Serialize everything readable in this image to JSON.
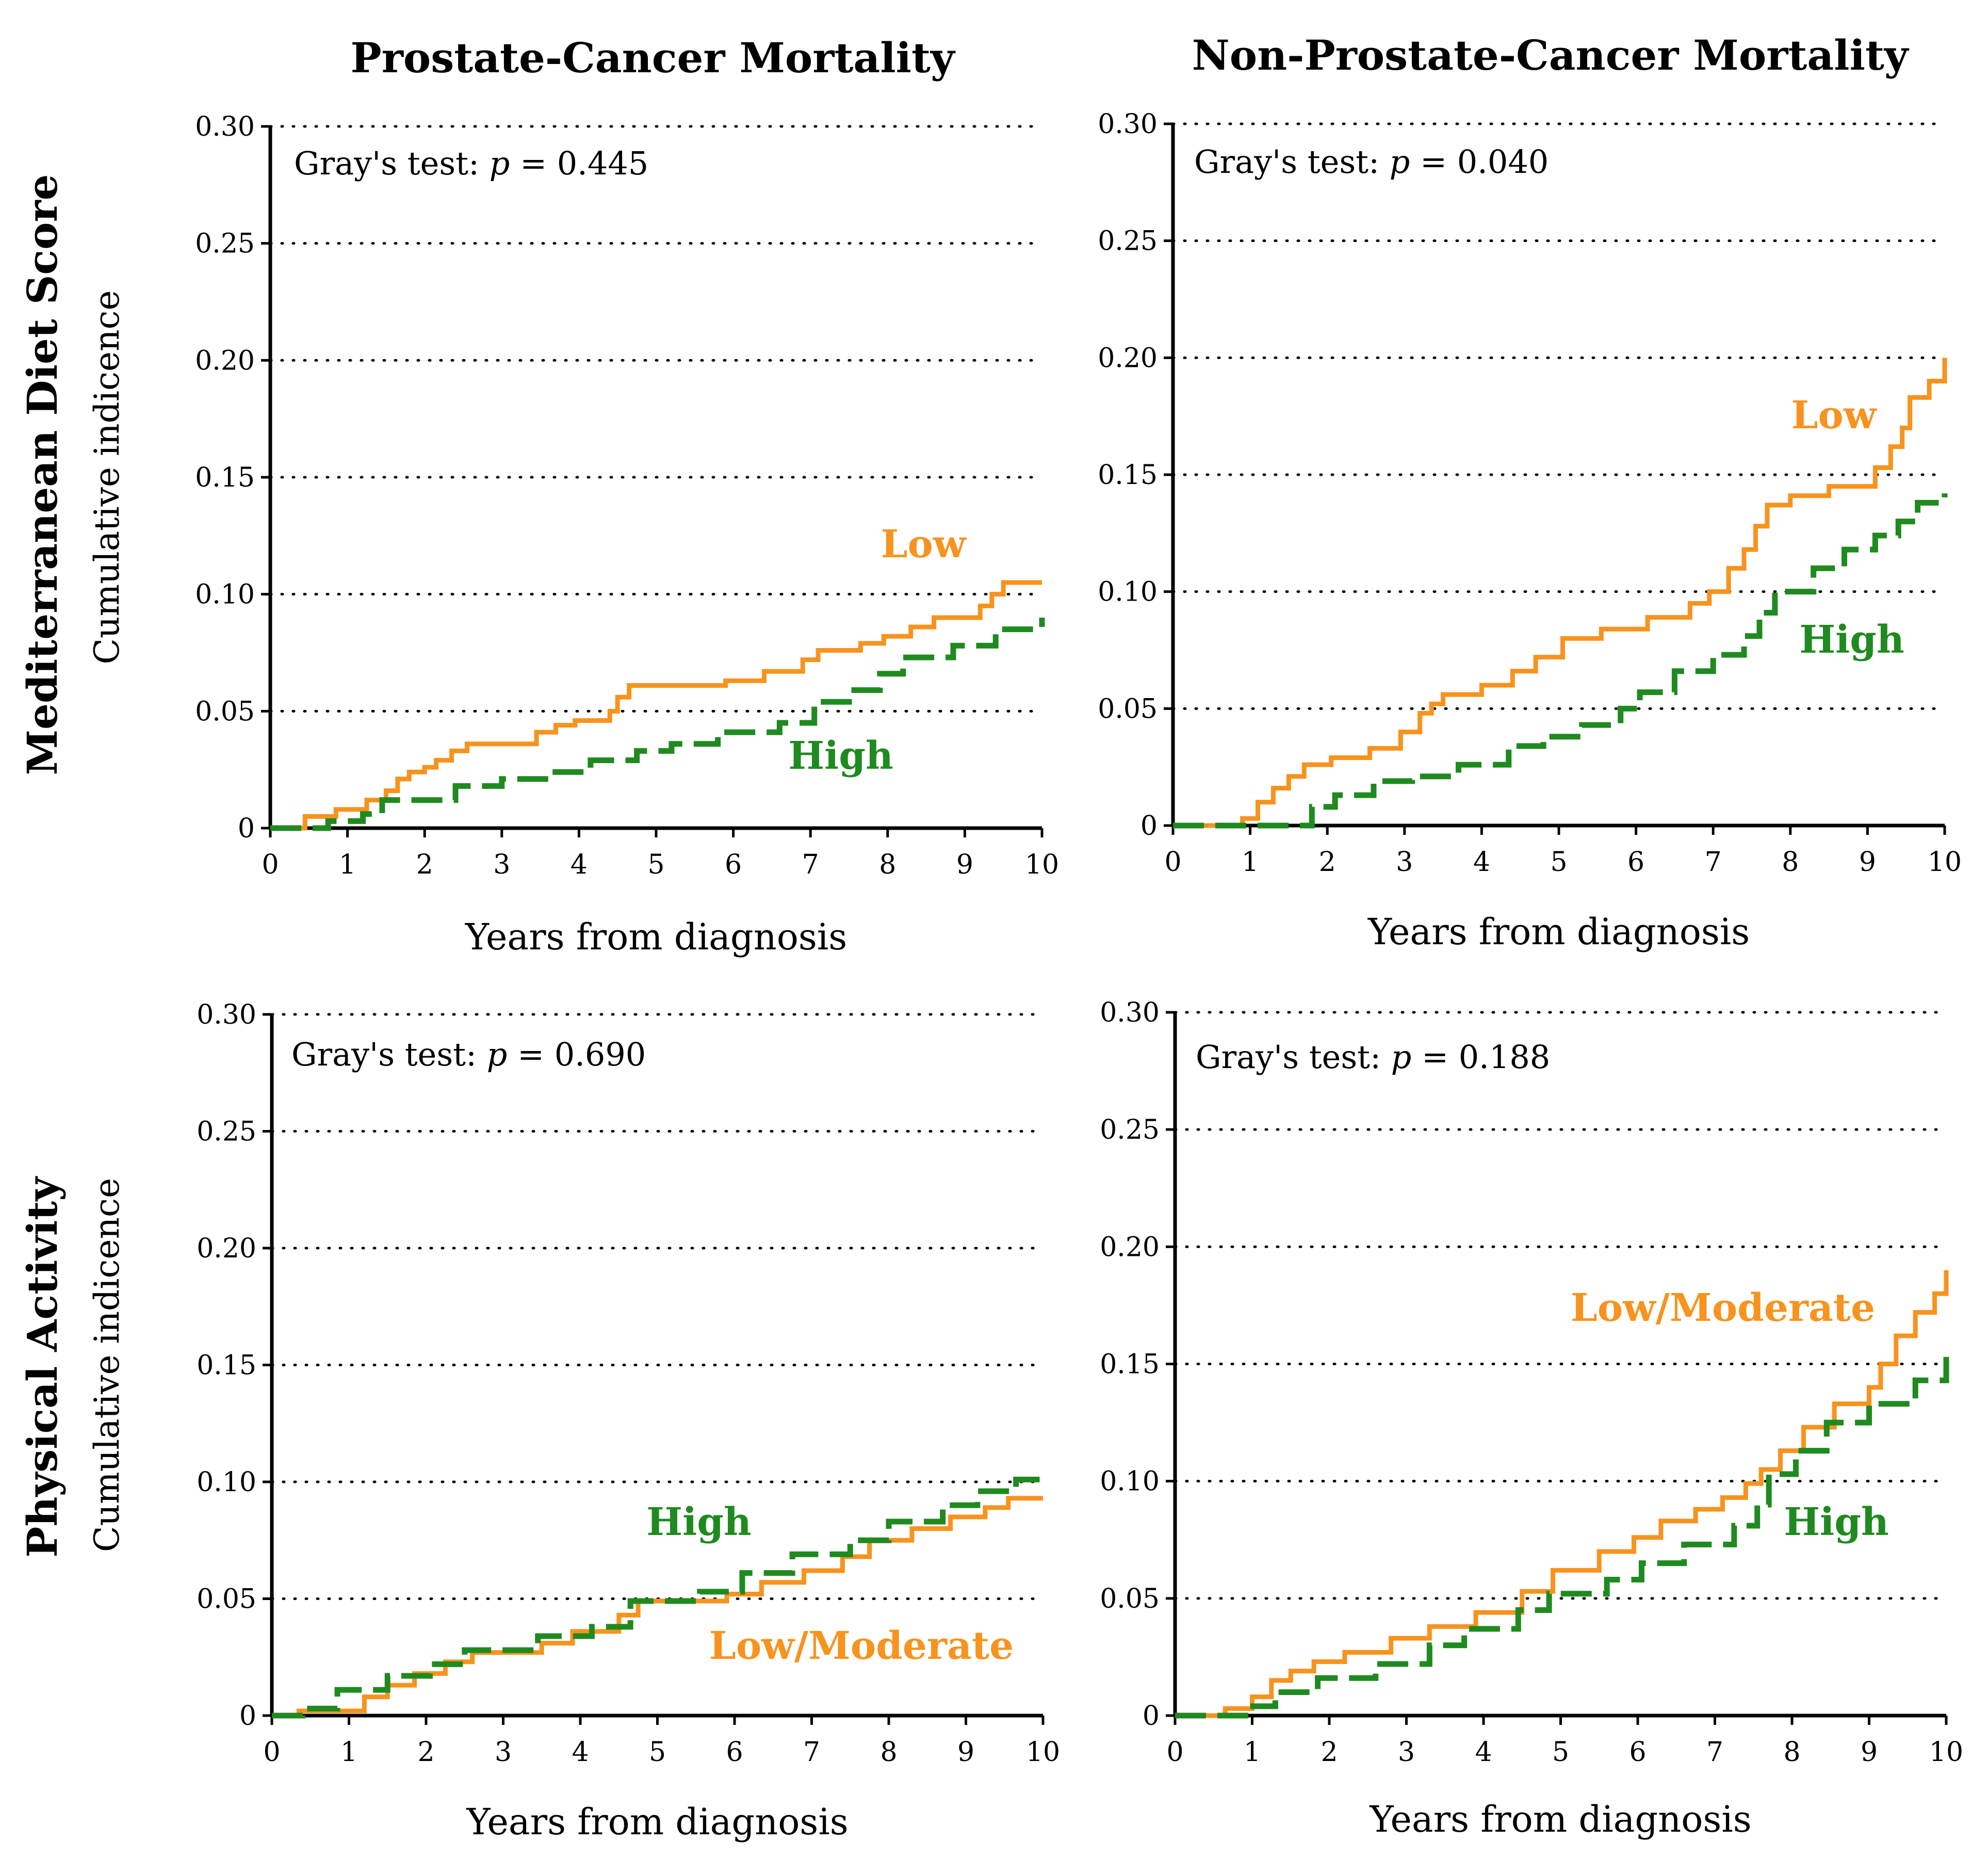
{
  "figure": {
    "column_titles": [
      "Prostate-Cancer Mortality",
      "Non-Prostate-Cancer Mortality"
    ],
    "row_titles": [
      "Mediterranean Diet Score",
      "Physical Activity"
    ],
    "colors": {
      "low": "#F7931E",
      "high": "#1F8A1F",
      "grid": "#000000",
      "text": "#000000"
    }
  },
  "chart_data": [
    {
      "type": "line",
      "title": "Prostate-Cancer Mortality",
      "row": "Mediterranean Diet Score",
      "xlabel": "Years from diagnosis",
      "ylabel": "Cumulative indicence",
      "xlim": [
        0,
        10
      ],
      "ylim": [
        0,
        0.3
      ],
      "xticks": [
        "0",
        "1",
        "2",
        "3",
        "4",
        "5",
        "6",
        "7",
        "8",
        "9",
        "10"
      ],
      "yticks": [
        "0",
        "0.05",
        "0.10",
        "0.15",
        "0.20",
        "0.25",
        "0.30"
      ],
      "grid": "horizontal dotted",
      "annotation": {
        "prefix": "Gray's test: ",
        "p": "p",
        "value": " = 0.445"
      },
      "series": [
        {
          "name": "Low",
          "style": "solid",
          "x": [
            0,
            0.3,
            0.45,
            0.85,
            1.25,
            1.5,
            1.65,
            1.8,
            2.0,
            2.15,
            2.35,
            2.55,
            2.75,
            3.45,
            3.7,
            3.95,
            4.4,
            4.5,
            4.65,
            5.9,
            6.4,
            6.9,
            7.1,
            7.65,
            7.95,
            8.3,
            8.6,
            9.2,
            9.35,
            9.5,
            10.0
          ],
          "values": [
            0,
            0,
            0.005,
            0.008,
            0.012,
            0.016,
            0.021,
            0.024,
            0.026,
            0.029,
            0.033,
            0.036,
            0.036,
            0.041,
            0.044,
            0.046,
            0.05,
            0.056,
            0.061,
            0.063,
            0.067,
            0.072,
            0.076,
            0.079,
            0.082,
            0.086,
            0.09,
            0.095,
            0.1,
            0.105,
            0.105
          ]
        },
        {
          "name": "High",
          "style": "dashed",
          "x": [
            0,
            0.75,
            1.2,
            1.45,
            2.4,
            3.0,
            3.65,
            4.15,
            4.75,
            5.2,
            5.8,
            6.6,
            7.05,
            7.5,
            7.9,
            8.2,
            8.85,
            9.4,
            10.0
          ],
          "values": [
            0,
            0.003,
            0.006,
            0.012,
            0.018,
            0.021,
            0.024,
            0.029,
            0.033,
            0.036,
            0.041,
            0.045,
            0.054,
            0.059,
            0.066,
            0.073,
            0.078,
            0.085,
            0.09
          ]
        }
      ],
      "labels": {
        "low": "Low",
        "high": "High"
      }
    },
    {
      "type": "line",
      "title": "Non-Prostate-Cancer Mortality",
      "row": "Mediterranean Diet Score",
      "xlabel": "Years from diagnosis",
      "ylabel": "Cumulative indicence",
      "xlim": [
        0,
        10
      ],
      "ylim": [
        0,
        0.3
      ],
      "xticks": [
        "0",
        "1",
        "2",
        "3",
        "4",
        "5",
        "6",
        "7",
        "8",
        "9",
        "10"
      ],
      "yticks": [
        "0",
        "0.05",
        "0.10",
        "0.15",
        "0.20",
        "0.25",
        "0.30"
      ],
      "grid": "horizontal dotted",
      "annotation": {
        "prefix": "Gray's test: ",
        "p": "p",
        "value": " = 0.040"
      },
      "series": [
        {
          "name": "Low",
          "style": "solid",
          "x": [
            0,
            0.55,
            0.9,
            1.1,
            1.3,
            1.5,
            1.7,
            2.05,
            2.55,
            2.95,
            3.2,
            3.35,
            3.5,
            4.0,
            4.4,
            4.7,
            5.05,
            5.55,
            6.15,
            6.7,
            6.95,
            7.2,
            7.4,
            7.55,
            7.7,
            8.0,
            8.5,
            9.1,
            9.3,
            9.45,
            9.55,
            9.8,
            10.0
          ],
          "values": [
            0,
            0,
            0.003,
            0.01,
            0.016,
            0.021,
            0.026,
            0.029,
            0.033,
            0.04,
            0.048,
            0.052,
            0.056,
            0.06,
            0.066,
            0.072,
            0.08,
            0.084,
            0.089,
            0.095,
            0.1,
            0.11,
            0.118,
            0.128,
            0.137,
            0.141,
            0.145,
            0.153,
            0.162,
            0.17,
            0.183,
            0.19,
            0.2
          ]
        },
        {
          "name": "High",
          "style": "dashed",
          "x": [
            0,
            1.35,
            1.8,
            2.1,
            2.6,
            3.1,
            3.7,
            4.35,
            4.8,
            5.3,
            5.8,
            6.05,
            6.5,
            7.0,
            7.4,
            7.6,
            7.8,
            8.3,
            8.7,
            9.1,
            9.4,
            9.65,
            10.0
          ],
          "values": [
            0,
            0,
            0.008,
            0.013,
            0.019,
            0.021,
            0.026,
            0.034,
            0.038,
            0.043,
            0.05,
            0.057,
            0.066,
            0.073,
            0.081,
            0.091,
            0.1,
            0.11,
            0.118,
            0.124,
            0.13,
            0.138,
            0.142
          ]
        }
      ],
      "labels": {
        "low": "Low",
        "high": "High"
      }
    },
    {
      "type": "line",
      "title": "Prostate-Cancer Mortality",
      "row": "Physical Activity",
      "xlabel": "Years from diagnosis",
      "ylabel": "Cumulative indicence",
      "xlim": [
        0,
        10
      ],
      "ylim": [
        0,
        0.3
      ],
      "xticks": [
        "0",
        "1",
        "2",
        "3",
        "4",
        "5",
        "6",
        "7",
        "8",
        "9",
        "10"
      ],
      "yticks": [
        "0",
        "0.05",
        "0.10",
        "0.15",
        "0.20",
        "0.25",
        "0.30"
      ],
      "grid": "horizontal dotted",
      "annotation": {
        "prefix": "Gray's test: ",
        "p": "p",
        "value": " = 0.690"
      },
      "series": [
        {
          "name": "Low/Moderate",
          "style": "solid",
          "x": [
            0,
            0.35,
            1.2,
            1.5,
            1.85,
            2.25,
            2.6,
            3.5,
            3.9,
            4.5,
            4.75,
            5.9,
            6.35,
            6.9,
            7.4,
            7.75,
            8.3,
            8.8,
            9.25,
            9.55,
            10.0
          ],
          "values": [
            0,
            0.002,
            0.008,
            0.013,
            0.018,
            0.023,
            0.027,
            0.031,
            0.036,
            0.043,
            0.049,
            0.052,
            0.057,
            0.062,
            0.068,
            0.075,
            0.08,
            0.085,
            0.089,
            0.093,
            0.093
          ]
        },
        {
          "name": "High",
          "style": "dashed",
          "x": [
            0,
            0.4,
            0.85,
            1.5,
            2.05,
            2.5,
            3.45,
            4.15,
            4.65,
            5.55,
            6.1,
            6.75,
            7.5,
            8.0,
            8.7,
            9.15,
            9.65,
            10.0
          ],
          "values": [
            0,
            0.003,
            0.011,
            0.017,
            0.022,
            0.028,
            0.034,
            0.038,
            0.049,
            0.053,
            0.061,
            0.069,
            0.075,
            0.083,
            0.09,
            0.096,
            0.101,
            0.103
          ]
        }
      ],
      "labels": {
        "low": "Low/Moderate",
        "high": "High"
      }
    },
    {
      "type": "line",
      "title": "Non-Prostate-Cancer Mortality",
      "row": "Physical Activity",
      "xlabel": "Years from diagnosis",
      "ylabel": "Cumulative indicence",
      "xlim": [
        0,
        10
      ],
      "ylim": [
        0,
        0.3
      ],
      "xticks": [
        "0",
        "1",
        "2",
        "3",
        "4",
        "5",
        "6",
        "7",
        "8",
        "9",
        "10"
      ],
      "yticks": [
        "0",
        "0.05",
        "0.10",
        "0.15",
        "0.20",
        "0.25",
        "0.30"
      ],
      "grid": "horizontal dotted",
      "annotation": {
        "prefix": "Gray's test: ",
        "p": "p",
        "value": " = 0.188"
      },
      "series": [
        {
          "name": "Low/Moderate",
          "style": "solid",
          "x": [
            0,
            0.65,
            1.0,
            1.25,
            1.5,
            1.8,
            2.2,
            2.8,
            3.3,
            3.9,
            4.5,
            4.9,
            5.5,
            5.95,
            6.3,
            6.75,
            7.1,
            7.4,
            7.6,
            7.85,
            8.15,
            8.55,
            9.0,
            9.15,
            9.35,
            9.6,
            9.85,
            10.0
          ],
          "values": [
            0,
            0.003,
            0.008,
            0.015,
            0.019,
            0.023,
            0.027,
            0.033,
            0.038,
            0.044,
            0.053,
            0.062,
            0.07,
            0.076,
            0.083,
            0.088,
            0.093,
            0.099,
            0.105,
            0.113,
            0.123,
            0.133,
            0.14,
            0.15,
            0.162,
            0.172,
            0.18,
            0.19
          ]
        },
        {
          "name": "High",
          "style": "dashed",
          "x": [
            0,
            0.95,
            1.3,
            1.85,
            2.6,
            3.3,
            3.75,
            4.45,
            4.85,
            5.6,
            6.05,
            6.6,
            7.25,
            7.55,
            7.7,
            8.05,
            8.45,
            9.0,
            9.6,
            10.0
          ],
          "values": [
            0,
            0.004,
            0.01,
            0.016,
            0.022,
            0.03,
            0.037,
            0.045,
            0.052,
            0.058,
            0.065,
            0.073,
            0.081,
            0.09,
            0.103,
            0.113,
            0.125,
            0.133,
            0.143,
            0.153
          ]
        }
      ],
      "labels": {
        "low": "Low/Moderate",
        "high": "High"
      }
    }
  ]
}
